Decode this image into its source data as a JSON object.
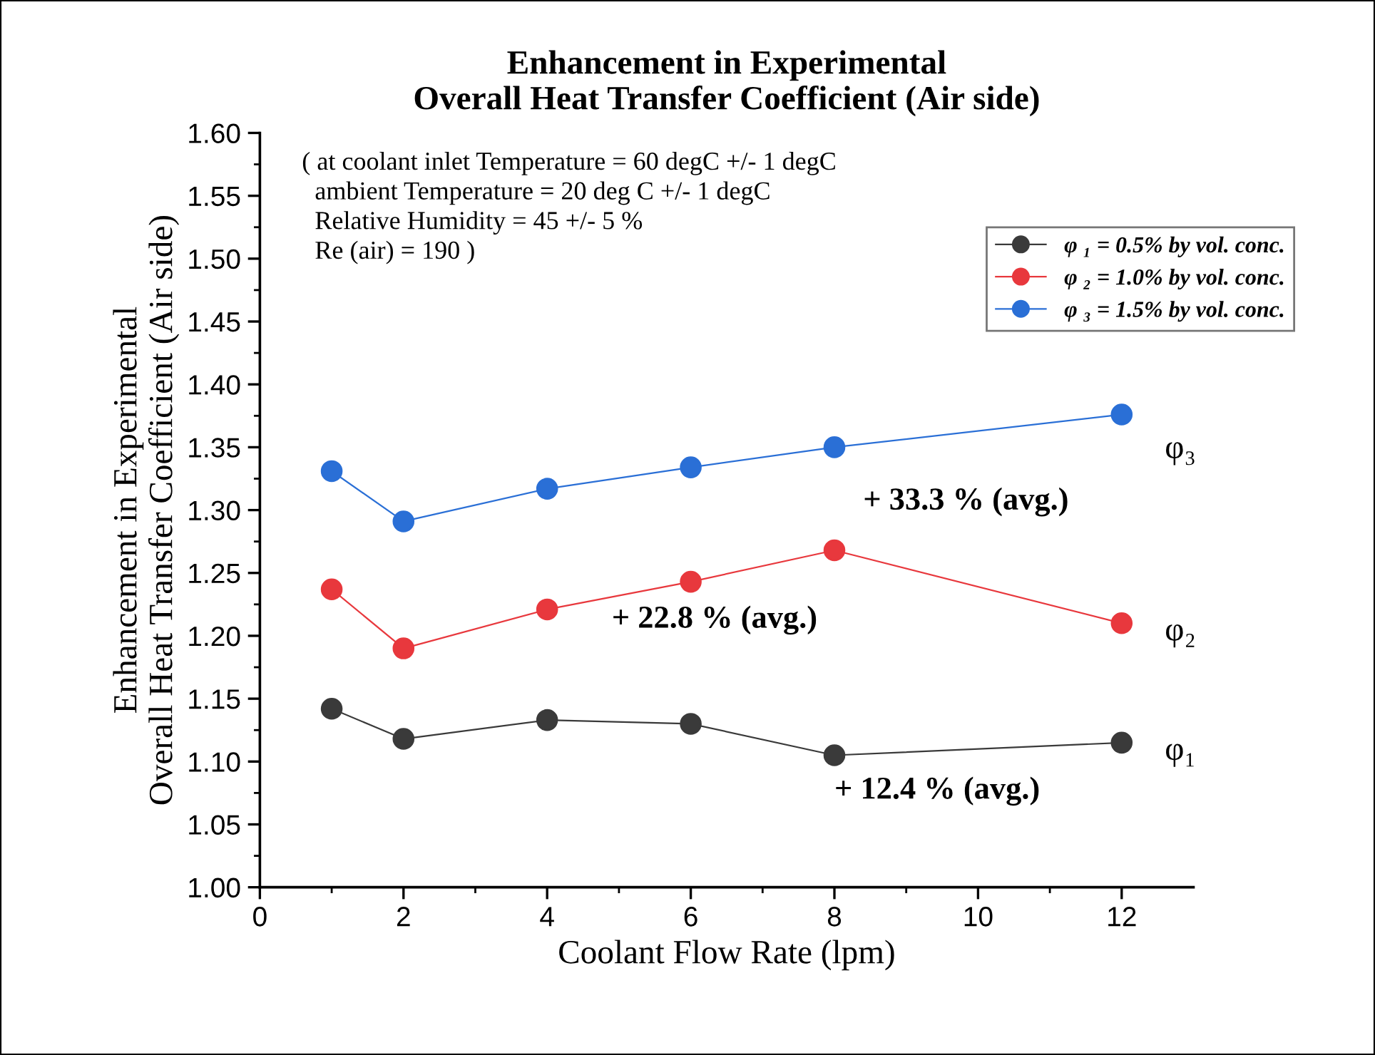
{
  "chart_data": {
    "type": "line",
    "title": "Enhancement in Experimental\nOverall Heat Transfer Coefficient (Air side)",
    "xlabel": "Coolant Flow Rate (lpm)",
    "ylabel": "Enhancement in Experimental\nOverall Heat Transfer Coefficient (Air side)",
    "x": [
      1,
      2,
      4,
      6,
      8,
      12
    ],
    "series": [
      {
        "name": "φ ₁ = 0.5% by vol. conc.",
        "color": "#3a3a3a",
        "values": [
          1.142,
          1.118,
          1.133,
          1.13,
          1.105,
          1.115
        ]
      },
      {
        "name": "φ ₂ = 1.0% by vol. conc.",
        "color": "#e8383d",
        "values": [
          1.237,
          1.19,
          1.221,
          1.243,
          1.268,
          1.21
        ]
      },
      {
        "name": "φ ₃ = 1.5% by vol. conc.",
        "color": "#2a6fd6",
        "values": [
          1.331,
          1.291,
          1.317,
          1.334,
          1.35,
          1.376
        ]
      }
    ],
    "annotations": [
      "( at coolant inlet Temperature = 60 degC +/- 1 degC\n  ambient Temperature = 20 deg C +/- 1 degC\n  Relative Humidity = 45 +/- 5 %\n  Re (air) = 190 )",
      "+ 33.3 % (avg.)",
      "+ 22.8 % (avg.)",
      "+ 12.4 % (avg.)",
      "φ₃",
      "φ₂",
      "φ₁"
    ],
    "xlim": [
      0,
      13
    ],
    "xticks": [
      0,
      2,
      4,
      6,
      8,
      10,
      12
    ],
    "ylim": [
      1.0,
      1.6
    ],
    "yticks": [
      {
        "value": 1.0,
        "label": "1.00"
      },
      {
        "value": 1.05,
        "label": "1.05"
      },
      {
        "value": 1.1,
        "label": "1.10"
      },
      {
        "value": 1.15,
        "label": "1.15"
      },
      {
        "value": 1.2,
        "label": "1.20"
      },
      {
        "value": 1.25,
        "label": "1.25"
      },
      {
        "value": 1.3,
        "label": "1.30"
      },
      {
        "value": 1.35,
        "label": "1.35"
      },
      {
        "value": 1.4,
        "label": "1.40"
      },
      {
        "value": 1.45,
        "label": "1.45"
      },
      {
        "value": 1.5,
        "label": "1.50"
      },
      {
        "value": 1.55,
        "label": "1.55"
      },
      {
        "value": 1.6,
        "label": "1.60"
      }
    ],
    "grid": false,
    "legend": "top right",
    "marker": "circle",
    "line_style": "solid"
  }
}
